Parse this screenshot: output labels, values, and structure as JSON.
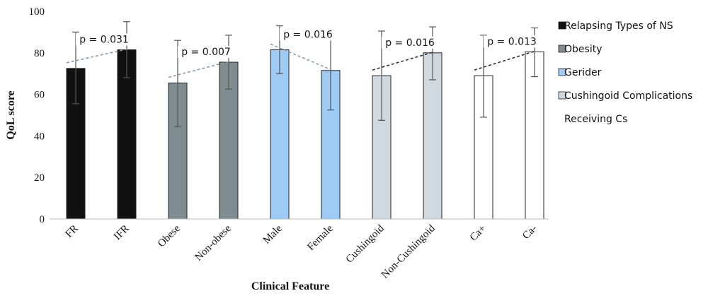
{
  "chart_data": {
    "type": "bar",
    "title": "",
    "ylabel": "QoL score",
    "xlabel": "Clinical Feature",
    "ylim": [
      0,
      100
    ],
    "yticks": [
      0,
      20,
      40,
      60,
      80,
      100
    ],
    "categories": [
      "FR",
      "IFR",
      "Obese",
      "Non-obese",
      "Male",
      "Female",
      "Cushingoid",
      "Non-Cushingoid",
      "Ca+",
      "Ca-"
    ],
    "values": [
      72.5,
      81.5,
      65.5,
      75.5,
      81.5,
      71.5,
      69,
      80,
      69,
      80.5
    ],
    "error_low": [
      55.5,
      68,
      44.5,
      62.5,
      70,
      52.5,
      47.5,
      67,
      49,
      68.5
    ],
    "error_high": [
      90,
      95,
      86,
      88.5,
      93,
      90.5,
      90.5,
      92.5,
      88.5,
      92
    ],
    "groups": [
      {
        "name": "Relapsing Types of NS",
        "color": "#111111",
        "bars": [
          0,
          1
        ],
        "p_value": "p = 0.031",
        "line_color": "#8a9aa8"
      },
      {
        "name": "Obesity",
        "color": "#7f8c92",
        "bars": [
          2,
          3
        ],
        "p_value": "p = 0.007",
        "line_color": "#8a9aa8"
      },
      {
        "name": "Gerider",
        "color": "#9ecbf3",
        "bars": [
          4,
          5
        ],
        "p_value": "p = 0.016",
        "line_color": "#8a9aa8"
      },
      {
        "name": "Cushingoid Complications",
        "color": "#cfd9df",
        "bars": [
          6,
          7
        ],
        "p_value": "p = 0.016",
        "line_color": "#2b3338"
      },
      {
        "name": "Receiving Cs",
        "color": "#ffffff",
        "bars": [
          8,
          9
        ],
        "p_value": "p = 0.013",
        "line_color": "#2b3338"
      }
    ],
    "grid": false,
    "legend_position": "right"
  }
}
